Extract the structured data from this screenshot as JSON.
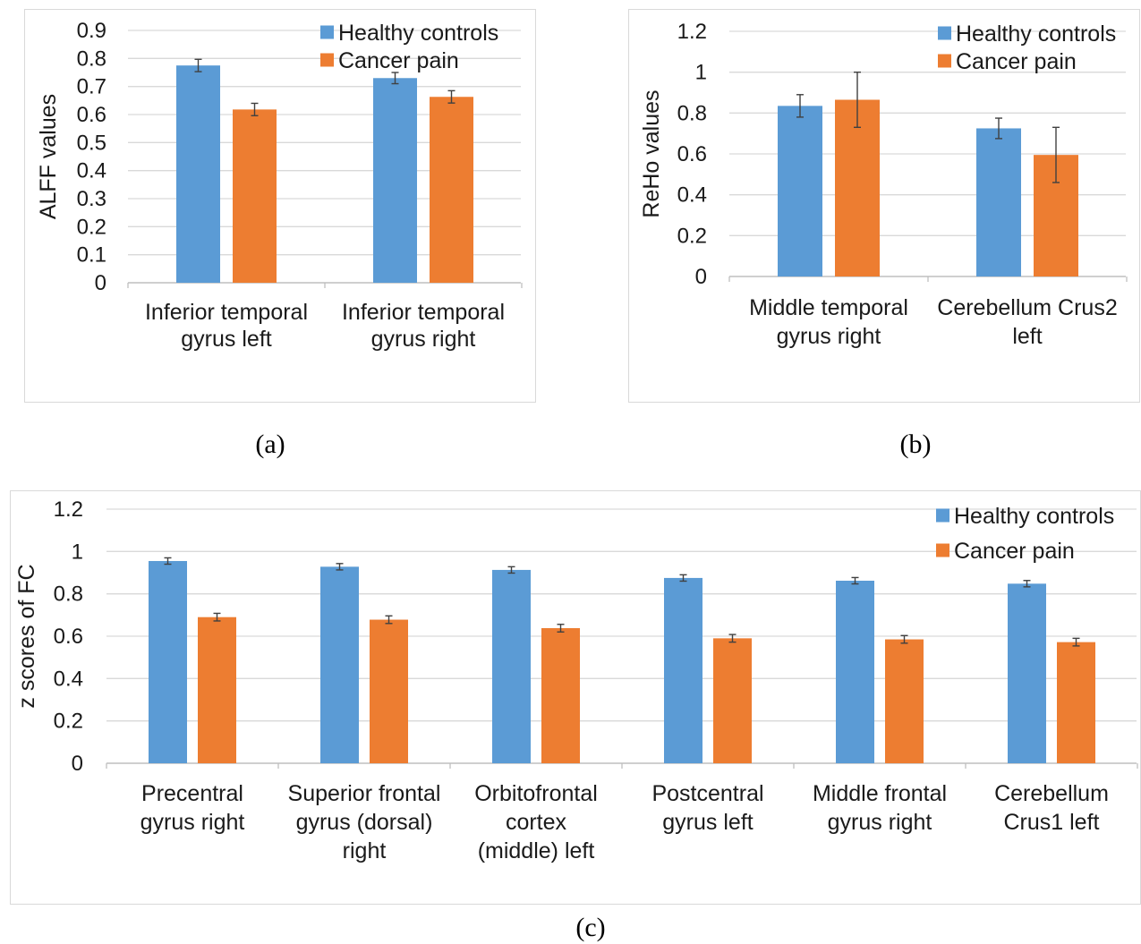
{
  "panels": [
    {
      "caption": "(a)",
      "chart_data": {
        "type": "bar",
        "ylabel": "ALFF values",
        "ylim": [
          0,
          0.9
        ],
        "yticks": [
          "0",
          "0.1",
          "0.2",
          "0.3",
          "0.4",
          "0.5",
          "0.6",
          "0.7",
          "0.8",
          "0.9"
        ],
        "categories": [
          [
            "Inferior temporal",
            "gyrus left"
          ],
          [
            "Inferior temporal",
            "gyrus right"
          ]
        ],
        "series": [
          {
            "name": "Healthy controls",
            "color": "#5b9bd5",
            "values": [
              0.775,
              0.73
            ],
            "errors": [
              0.022,
              0.02
            ]
          },
          {
            "name": "Cancer pain",
            "color": "#ed7d31",
            "values": [
              0.618,
              0.663
            ],
            "errors": [
              0.022,
              0.022
            ]
          }
        ],
        "legend": "top-right",
        "grid": true
      }
    },
    {
      "caption": "(b)",
      "chart_data": {
        "type": "bar",
        "ylabel": "ReHo values",
        "ylim": [
          0,
          1.2
        ],
        "yticks": [
          "0",
          "0.2",
          "0.4",
          "0.6",
          "0.8",
          "1",
          "1.2"
        ],
        "categories": [
          [
            "Middle temporal",
            "gyrus right"
          ],
          [
            "Cerebellum Crus2",
            "left"
          ]
        ],
        "series": [
          {
            "name": "Healthy controls",
            "color": "#5b9bd5",
            "values": [
              0.835,
              0.725
            ],
            "errors": [
              0.055,
              0.05
            ]
          },
          {
            "name": "Cancer pain",
            "color": "#ed7d31",
            "values": [
              0.865,
              0.595
            ],
            "errors": [
              0.135,
              0.135
            ]
          }
        ],
        "legend": "top-right",
        "grid": true
      }
    },
    {
      "caption": "(c)",
      "chart_data": {
        "type": "bar",
        "ylabel": "z scores of FC",
        "ylim": [
          0,
          1.2
        ],
        "yticks": [
          "0",
          "0.2",
          "0.4",
          "0.6",
          "0.8",
          "1",
          "1.2"
        ],
        "categories": [
          [
            "Precentral",
            "gyrus right"
          ],
          [
            "Superior frontal",
            "gyrus (dorsal)",
            "right"
          ],
          [
            "Orbitofrontal",
            "cortex",
            "(middle) left"
          ],
          [
            "Postcentral",
            "gyrus left"
          ],
          [
            "Middle frontal",
            "gyrus right"
          ],
          [
            "Cerebellum",
            "Crus1 left"
          ]
        ],
        "series": [
          {
            "name": "Healthy controls",
            "color": "#5b9bd5",
            "values": [
              0.955,
              0.928,
              0.913,
              0.875,
              0.862,
              0.848
            ],
            "errors": [
              0.015,
              0.015,
              0.015,
              0.015,
              0.015,
              0.015
            ]
          },
          {
            "name": "Cancer pain",
            "color": "#ed7d31",
            "values": [
              0.69,
              0.678,
              0.638,
              0.59,
              0.585,
              0.572
            ],
            "errors": [
              0.018,
              0.018,
              0.018,
              0.018,
              0.018,
              0.018
            ]
          }
        ],
        "legend": "top-right",
        "grid": true
      }
    }
  ]
}
